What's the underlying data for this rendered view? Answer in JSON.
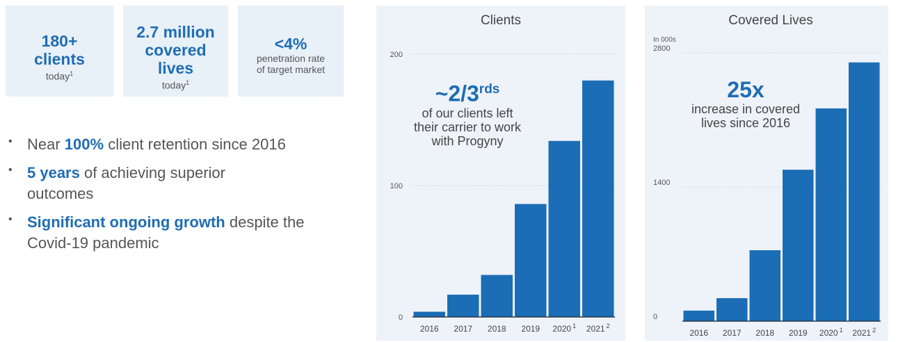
{
  "stats": [
    {
      "big": "180+ clients",
      "small": "today",
      "note": "1"
    },
    {
      "big": "2.7 million covered lives",
      "small": "today",
      "note": "1"
    },
    {
      "big": "<4%",
      "small": "penetration rate of target market"
    }
  ],
  "bullets": [
    {
      "pre": "Near ",
      "bold": "100%",
      "post": " client retention since 2016"
    },
    {
      "pre": "",
      "bold": "5 years",
      "post": " of achieving superior outcomes"
    },
    {
      "pre": "",
      "bold": "Significant ongoing growth",
      "post": " despite the Covid-19 pandemic"
    }
  ],
  "callouts": {
    "clients": {
      "big": "~2/3",
      "sup": "rds",
      "text": "of our clients left their carrier to work with Progyny"
    },
    "lives": {
      "big": "25x",
      "text": "increase in covered lives since 2016"
    }
  },
  "chart_data": [
    {
      "type": "bar",
      "title": "Clients",
      "categories": [
        "2016",
        "2017",
        "2018",
        "2019",
        "2020",
        "2021"
      ],
      "category_notes": [
        "",
        "",
        "",
        "",
        "1",
        "2"
      ],
      "values": [
        4,
        17,
        32,
        86,
        134,
        180
      ],
      "ylim": [
        0,
        200
      ],
      "yticks": [
        0,
        100,
        200
      ],
      "ylabel": "",
      "colors": {
        "bar": "#1b6db5",
        "grid": "#c9d6e3"
      }
    },
    {
      "type": "bar",
      "title": "Covered Lives",
      "unit_note": "In 000s",
      "categories": [
        "2016",
        "2017",
        "2018",
        "2019",
        "2020",
        "2021"
      ],
      "category_notes": [
        "",
        "",
        "",
        "",
        "1",
        "2"
      ],
      "values": [
        110,
        240,
        740,
        1580,
        2220,
        2700
      ],
      "ylim": [
        0,
        2800
      ],
      "yticks": [
        0,
        1400,
        2800
      ],
      "ylabel": "",
      "colors": {
        "bar": "#1b6db5",
        "grid": "#c9d6e3"
      }
    }
  ]
}
